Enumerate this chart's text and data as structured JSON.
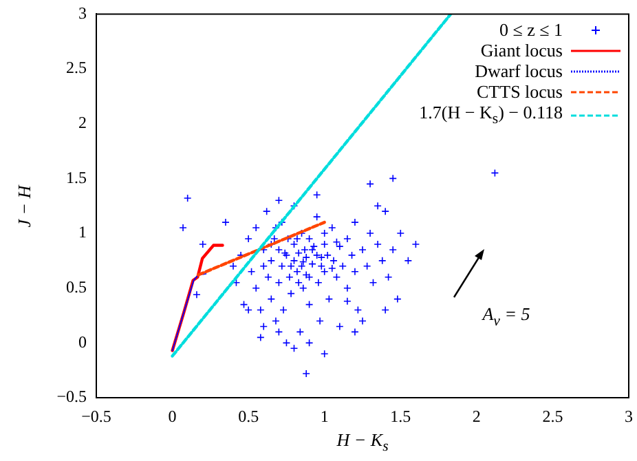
{
  "chart_data": {
    "type": "scatter",
    "xlabel": "H − K$_{s}$",
    "ylabel": "J − H",
    "xlim": [
      -0.5,
      3
    ],
    "ylim": [
      -0.5,
      3
    ],
    "xticks": [
      {
        "value": -0.5,
        "label": "−0.5"
      },
      0,
      0.5,
      1,
      1.5,
      2,
      2.5,
      3
    ],
    "yticks": [
      {
        "value": -0.5,
        "label": "−0.5"
      },
      0,
      0.5,
      1,
      1.5,
      2,
      2.5,
      3
    ],
    "grid": false,
    "legend": "top right",
    "annotations": [
      "A$_{v}$ = 5"
    ],
    "series": [
      {
        "name": "0 ≤ z ≤ 1",
        "type": "scatter",
        "marker": "cross",
        "color": "#0000ff",
        "x": [
          0.45,
          0.5,
          0.52,
          0.55,
          0.55,
          0.58,
          0.6,
          0.6,
          0.62,
          0.63,
          0.65,
          0.65,
          0.67,
          0.68,
          0.7,
          0.7,
          0.72,
          0.72,
          0.73,
          0.75,
          0.75,
          0.76,
          0.77,
          0.78,
          0.8,
          0.8,
          0.8,
          0.82,
          0.83,
          0.84,
          0.85,
          0.85,
          0.86,
          0.87,
          0.88,
          0.9,
          0.9,
          0.9,
          0.92,
          0.93,
          0.95,
          0.95,
          0.96,
          0.97,
          0.98,
          1.0,
          1.0,
          1.02,
          1.03,
          1.05,
          1.06,
          1.08,
          1.1,
          1.1,
          1.12,
          1.15,
          1.15,
          1.18,
          1.2,
          1.2,
          1.22,
          1.25,
          1.28,
          1.3,
          1.32,
          1.35,
          1.38,
          1.4,
          1.42,
          1.45,
          1.48,
          1.5,
          1.55,
          0.5,
          0.58,
          0.7,
          0.8,
          0.9,
          1.0,
          1.2,
          0.88,
          1.3,
          1.45,
          2.12,
          0.1,
          0.07,
          0.16,
          0.2,
          0.35,
          0.4,
          0.42,
          0.47,
          1.6,
          1.25,
          1.35,
          0.7,
          0.95,
          0.6,
          0.65,
          0.78,
          0.82,
          0.88,
          0.92,
          0.98,
          1.05,
          1.08,
          0.74,
          0.86,
          1.0,
          0.83,
          0.68,
          1.15,
          1.4
        ],
        "values": [
          0.8,
          0.95,
          0.65,
          0.5,
          1.05,
          0.3,
          0.85,
          0.15,
          1.2,
          0.6,
          0.75,
          0.4,
          0.95,
          0.2,
          0.55,
          0.85,
          1.1,
          0.7,
          0.3,
          0.8,
          0.0,
          0.95,
          0.6,
          0.45,
          0.75,
          0.9,
          1.25,
          0.65,
          0.82,
          0.1,
          0.7,
          1.0,
          0.5,
          0.85,
          0.78,
          0.6,
          0.95,
          0.35,
          0.72,
          0.88,
          0.8,
          1.15,
          0.55,
          0.2,
          0.7,
          0.9,
          0.65,
          0.8,
          0.4,
          1.05,
          0.75,
          0.6,
          0.88,
          0.15,
          0.7,
          0.95,
          0.5,
          0.8,
          1.1,
          0.65,
          0.3,
          0.85,
          0.7,
          1.0,
          0.55,
          0.9,
          0.75,
          1.2,
          0.6,
          0.85,
          0.4,
          1.0,
          0.75,
          0.3,
          0.05,
          0.1,
          -0.05,
          0.0,
          -0.1,
          0.1,
          -0.28,
          1.45,
          1.5,
          1.55,
          1.32,
          1.05,
          0.44,
          0.9,
          1.1,
          0.7,
          0.55,
          0.35,
          0.9,
          0.2,
          1.25,
          1.3,
          1.35,
          0.7,
          0.9,
          0.7,
          0.95,
          0.62,
          0.85,
          0.78,
          0.68,
          0.92,
          0.82,
          0.74,
          1.0,
          0.55,
          1.05,
          0.38,
          0.3
        ]
      },
      {
        "name": "Giant locus",
        "type": "line",
        "line_style": "solid",
        "marker": "none",
        "color": "#ff0000",
        "x": [
          0,
          0.076,
          0.136,
          0.166,
          0.197,
          0.27,
          0.33
        ],
        "values": [
          -0.07,
          0.28,
          0.57,
          0.6,
          0.77,
          0.89,
          0.89
        ]
      },
      {
        "name": "Dwarf locus",
        "type": "line",
        "line_style": "dotted",
        "marker": "none",
        "color": "#0000ff",
        "x": [
          0,
          0.08,
          0.14,
          0.17,
          0.22
        ],
        "values": [
          -0.07,
          0.3,
          0.57,
          0.62,
          0.63
        ]
      },
      {
        "name": "CTTS locus",
        "type": "line",
        "line_style": "dashed",
        "marker": "none",
        "color": "#ff4500",
        "x": [
          0.17,
          1.0
        ],
        "values": [
          0.62,
          1.1
        ]
      },
      {
        "name": "1.7(H − K$_{s}$) − 0.118",
        "type": "line",
        "line_style": "dashed",
        "marker": "none",
        "color": "#00dddd",
        "x": [
          0,
          1.83
        ],
        "values": [
          -0.12,
          3.0
        ]
      }
    ]
  }
}
